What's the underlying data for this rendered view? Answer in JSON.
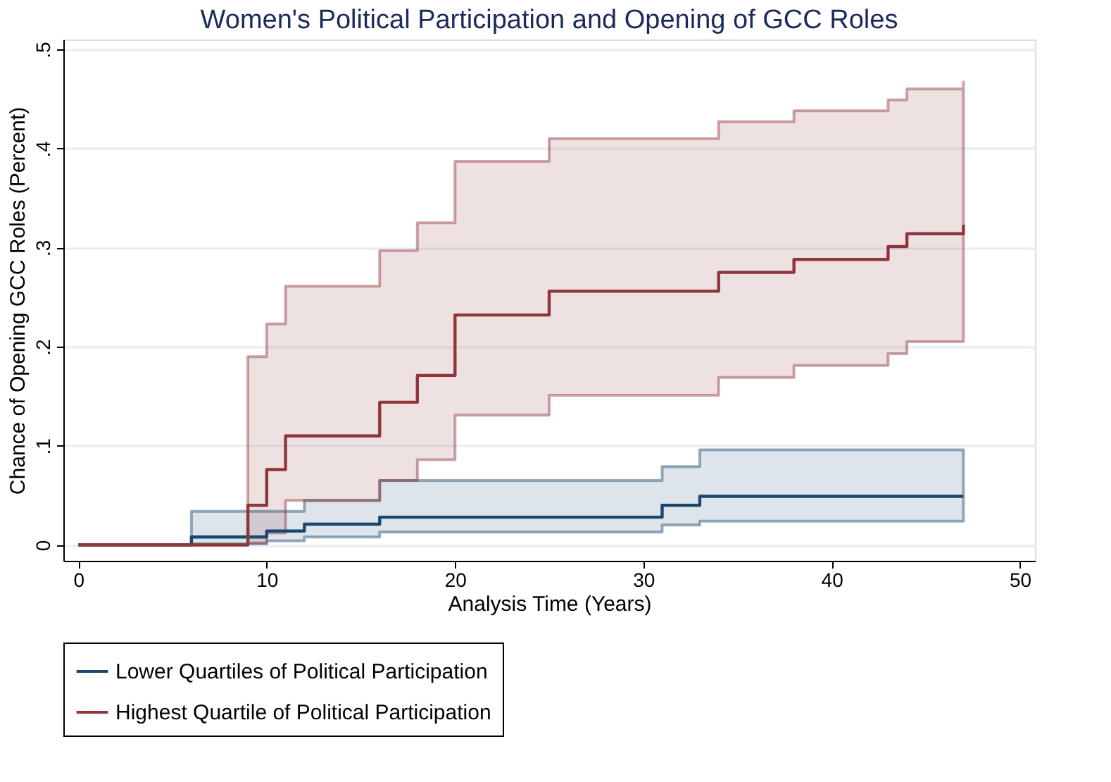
{
  "chart_data": {
    "type": "step",
    "title": "Women's Political Participation and Opening of GCC Roles",
    "xlabel": "Analysis Time (Years)",
    "ylabel": "Chance of Opening GCC Roles (Percent)",
    "xlim": [
      -0.8,
      50.8
    ],
    "xticks": [
      0,
      10,
      20,
      30,
      40,
      50
    ],
    "ylim": [
      -0.016,
      0.51
    ],
    "yticks": [
      0,
      {
        "value": 0.1,
        "label": ".1"
      },
      {
        "value": 0.2,
        "label": ".2"
      },
      {
        "value": 0.3,
        "label": ".3"
      },
      {
        "value": 0.4,
        "label": ".4"
      },
      {
        "value": 0.5,
        "label": ".5"
      }
    ],
    "grid": "y",
    "legend": "bottom",
    "series": [
      {
        "name": "Lower Quartiles of Political Participation",
        "color": "#1a476f",
        "x": [
          0,
          6,
          10,
          12,
          16,
          31,
          33,
          47
        ],
        "values": [
          0,
          0.008,
          0.014,
          0.021,
          0.028,
          0.04,
          0.049,
          0.049
        ],
        "lower": [
          null,
          0.001,
          0.004,
          0.008,
          0.013,
          0.02,
          0.024,
          0.024
        ],
        "upper": [
          null,
          0.034,
          0.034,
          0.045,
          0.065,
          0.079,
          0.096,
          0.096
        ]
      },
      {
        "name": "Highest Quartile of Political Participation",
        "color": "#90353b",
        "x": [
          0,
          9,
          10,
          11,
          16,
          18,
          20,
          25,
          34,
          38,
          43,
          44,
          47
        ],
        "values": [
          0,
          0.04,
          0.076,
          0.11,
          0.144,
          0.171,
          0.232,
          0.256,
          0.275,
          0.288,
          0.301,
          0.314,
          0.323
        ],
        "lower": [
          null,
          0.002,
          0.012,
          0.045,
          0.065,
          0.086,
          0.131,
          0.151,
          0.169,
          0.181,
          0.193,
          0.205,
          0.216
        ],
        "upper": [
          null,
          0.19,
          0.223,
          0.261,
          0.297,
          0.325,
          0.387,
          0.41,
          0.427,
          0.438,
          0.449,
          0.46,
          0.467
        ]
      }
    ]
  }
}
